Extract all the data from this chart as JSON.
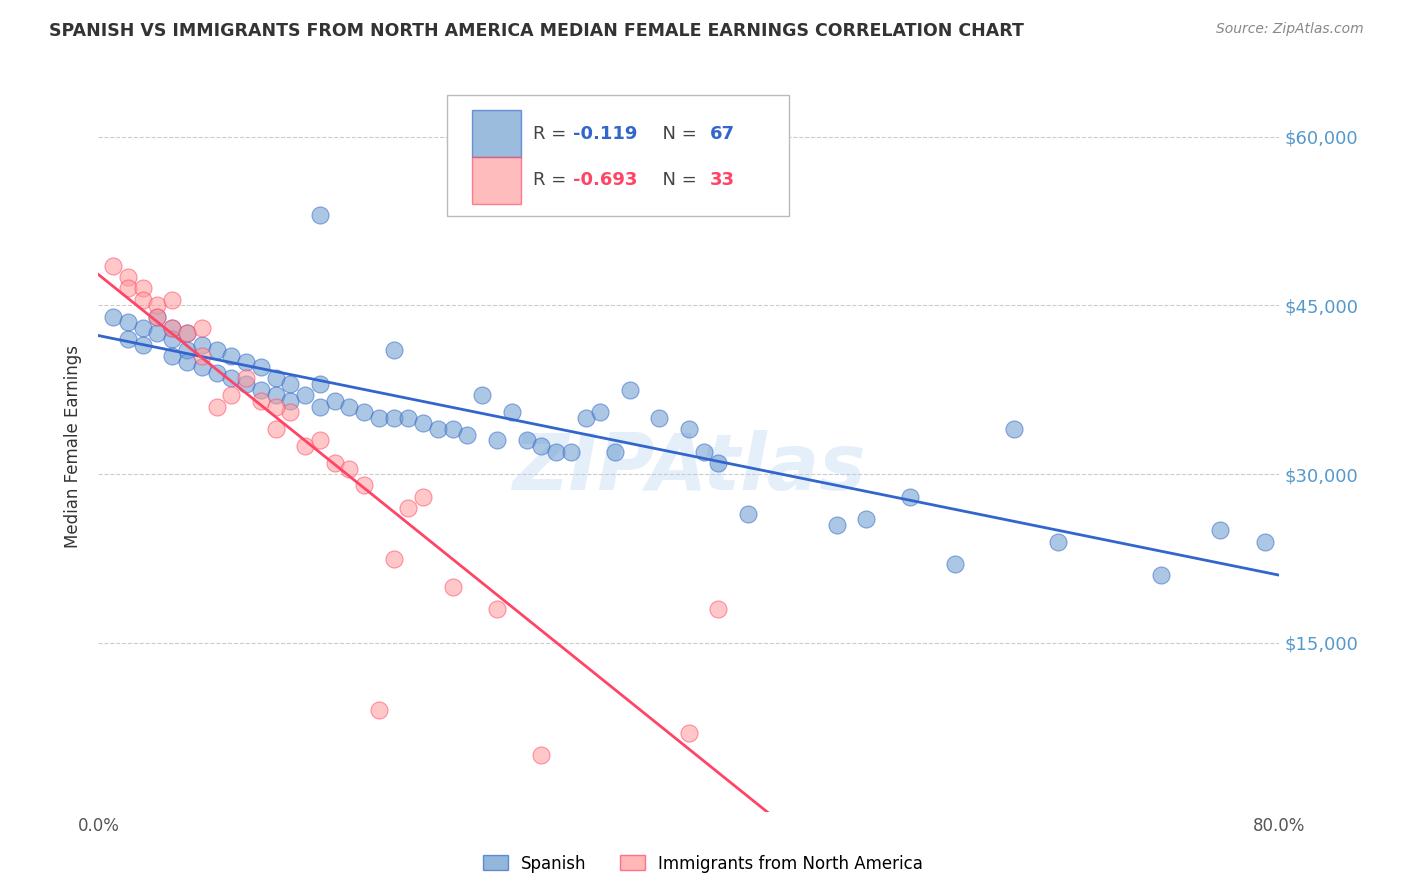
{
  "title": "SPANISH VS IMMIGRANTS FROM NORTH AMERICA MEDIAN FEMALE EARNINGS CORRELATION CHART",
  "source": "Source: ZipAtlas.com",
  "ylabel": "Median Female Earnings",
  "watermark": "ZIPAtlas",
  "xlim": [
    0.0,
    0.8
  ],
  "ylim": [
    0,
    65000
  ],
  "xtick_labels": [
    "0.0%",
    "",
    "",
    "",
    "",
    "",
    "",
    "",
    "80.0%"
  ],
  "xtick_values": [
    0.0,
    0.1,
    0.2,
    0.3,
    0.4,
    0.5,
    0.6,
    0.7,
    0.8
  ],
  "ytick_values": [
    0,
    15000,
    30000,
    45000,
    60000
  ],
  "ytick_labels": [
    "",
    "$15,000",
    "$30,000",
    "$45,000",
    "$60,000"
  ],
  "blue_R": -0.119,
  "blue_N": 67,
  "pink_R": -0.693,
  "pink_N": 33,
  "blue_color": "#6699CC",
  "pink_color": "#FF9999",
  "line_blue": "#3366CC",
  "line_pink": "#FF4466",
  "grid_color": "#CCCCCC",
  "background_color": "#FFFFFF",
  "title_color": "#333333",
  "axis_label_color": "#333333",
  "right_tick_color": "#5599CC",
  "blue_scatter_x": [
    0.01,
    0.02,
    0.02,
    0.03,
    0.03,
    0.04,
    0.04,
    0.05,
    0.05,
    0.05,
    0.06,
    0.06,
    0.06,
    0.07,
    0.07,
    0.08,
    0.08,
    0.09,
    0.09,
    0.1,
    0.1,
    0.11,
    0.11,
    0.12,
    0.12,
    0.13,
    0.13,
    0.14,
    0.15,
    0.15,
    0.16,
    0.17,
    0.18,
    0.19,
    0.2,
    0.2,
    0.21,
    0.22,
    0.23,
    0.24,
    0.25,
    0.26,
    0.27,
    0.28,
    0.29,
    0.3,
    0.31,
    0.32,
    0.33,
    0.34,
    0.35,
    0.36,
    0.38,
    0.4,
    0.41,
    0.42,
    0.44,
    0.5,
    0.52,
    0.55,
    0.58,
    0.62,
    0.65,
    0.72,
    0.76,
    0.79,
    0.15
  ],
  "blue_scatter_y": [
    44000,
    43500,
    42000,
    43000,
    41500,
    44000,
    42500,
    43000,
    42000,
    40500,
    42500,
    41000,
    40000,
    41500,
    39500,
    41000,
    39000,
    40500,
    38500,
    40000,
    38000,
    39500,
    37500,
    38500,
    37000,
    38000,
    36500,
    37000,
    38000,
    36000,
    36500,
    36000,
    35500,
    35000,
    41000,
    35000,
    35000,
    34500,
    34000,
    34000,
    33500,
    37000,
    33000,
    35500,
    33000,
    32500,
    32000,
    32000,
    35000,
    35500,
    32000,
    37500,
    35000,
    34000,
    32000,
    31000,
    26500,
    25500,
    26000,
    28000,
    22000,
    34000,
    24000,
    21000,
    25000,
    24000,
    53000
  ],
  "pink_scatter_x": [
    0.01,
    0.02,
    0.02,
    0.03,
    0.03,
    0.04,
    0.04,
    0.05,
    0.05,
    0.06,
    0.07,
    0.07,
    0.08,
    0.09,
    0.1,
    0.11,
    0.12,
    0.13,
    0.14,
    0.15,
    0.16,
    0.17,
    0.18,
    0.19,
    0.2,
    0.21,
    0.22,
    0.24,
    0.27,
    0.3,
    0.12,
    0.4,
    0.42
  ],
  "pink_scatter_y": [
    48500,
    47500,
    46500,
    46500,
    45500,
    45000,
    44000,
    45500,
    43000,
    42500,
    43000,
    40500,
    36000,
    37000,
    38500,
    36500,
    34000,
    35500,
    32500,
    33000,
    31000,
    30500,
    29000,
    9000,
    22500,
    27000,
    28000,
    20000,
    18000,
    5000,
    36000,
    7000,
    18000
  ]
}
